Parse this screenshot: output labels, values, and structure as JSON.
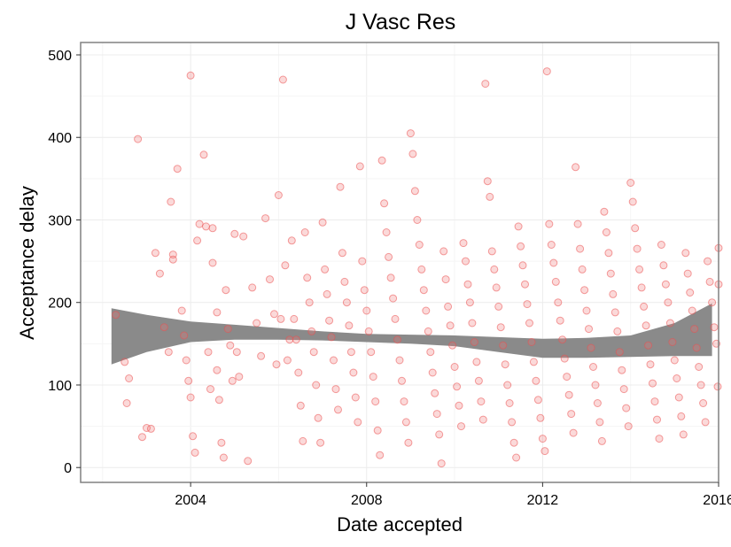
{
  "chart_data": {
    "type": "scatter",
    "title": "J Vasc Res",
    "xlabel": "Date accepted",
    "ylabel": "Acceptance delay",
    "xlim": [
      2001.5,
      2016.0
    ],
    "ylim": [
      -18,
      515
    ],
    "x_ticks": [
      2004,
      2008,
      2012,
      2016
    ],
    "x_tick_labels": [
      "2004",
      "2008",
      "2012",
      "2016"
    ],
    "y_ticks": [
      0,
      100,
      200,
      300,
      400,
      500
    ],
    "y_tick_labels": [
      "0",
      "100",
      "200",
      "300",
      "400",
      "500"
    ],
    "grid": true,
    "point_color": "#f08080",
    "band_color": "#8a8a8a",
    "smooth_band": {
      "x": [
        2002.2,
        2003.0,
        2004.0,
        2005.0,
        2006.0,
        2007.0,
        2008.0,
        2009.0,
        2010.0,
        2011.0,
        2012.0,
        2013.0,
        2014.0,
        2015.0,
        2015.85
      ],
      "upper": [
        193,
        185,
        177,
        173,
        169,
        165,
        162,
        161,
        160,
        158,
        156,
        157,
        160,
        175,
        199
      ],
      "lower": [
        125,
        140,
        152,
        155,
        155,
        154,
        152,
        150,
        147,
        140,
        133,
        133,
        134,
        135,
        135
      ]
    },
    "points": [
      [
        2002.3,
        185
      ],
      [
        2002.5,
        128
      ],
      [
        2002.6,
        108
      ],
      [
        2002.55,
        78
      ],
      [
        2002.8,
        398
      ],
      [
        2002.9,
        37
      ],
      [
        2003.0,
        48
      ],
      [
        2003.1,
        47
      ],
      [
        2003.2,
        260
      ],
      [
        2003.3,
        235
      ],
      [
        2003.4,
        170
      ],
      [
        2003.5,
        140
      ],
      [
        2003.55,
        322
      ],
      [
        2003.6,
        258
      ],
      [
        2003.6,
        252
      ],
      [
        2003.7,
        362
      ],
      [
        2003.8,
        190
      ],
      [
        2003.85,
        160
      ],
      [
        2003.9,
        130
      ],
      [
        2004.0,
        475
      ],
      [
        2003.95,
        105
      ],
      [
        2004.0,
        85
      ],
      [
        2004.05,
        38
      ],
      [
        2004.1,
        18
      ],
      [
        2004.15,
        275
      ],
      [
        2004.2,
        295
      ],
      [
        2004.3,
        379
      ],
      [
        2004.35,
        292
      ],
      [
        2004.4,
        140
      ],
      [
        2004.45,
        95
      ],
      [
        2004.5,
        248
      ],
      [
        2004.5,
        290
      ],
      [
        2004.6,
        188
      ],
      [
        2004.6,
        118
      ],
      [
        2004.65,
        82
      ],
      [
        2004.7,
        30
      ],
      [
        2004.75,
        12
      ],
      [
        2004.8,
        215
      ],
      [
        2004.85,
        168
      ],
      [
        2004.9,
        148
      ],
      [
        2004.95,
        105
      ],
      [
        2005.0,
        283
      ],
      [
        2005.05,
        140
      ],
      [
        2005.1,
        110
      ],
      [
        2005.2,
        280
      ],
      [
        2005.3,
        8
      ],
      [
        2005.4,
        218
      ],
      [
        2005.5,
        175
      ],
      [
        2005.6,
        135
      ],
      [
        2005.7,
        302
      ],
      [
        2005.8,
        228
      ],
      [
        2005.9,
        186
      ],
      [
        2005.95,
        125
      ],
      [
        2006.0,
        330
      ],
      [
        2006.05,
        180
      ],
      [
        2006.1,
        470
      ],
      [
        2006.15,
        245
      ],
      [
        2006.2,
        130
      ],
      [
        2006.25,
        155
      ],
      [
        2006.3,
        275
      ],
      [
        2006.35,
        180
      ],
      [
        2006.4,
        155
      ],
      [
        2006.45,
        115
      ],
      [
        2006.5,
        75
      ],
      [
        2006.55,
        32
      ],
      [
        2006.6,
        285
      ],
      [
        2006.65,
        230
      ],
      [
        2006.7,
        200
      ],
      [
        2006.75,
        165
      ],
      [
        2006.8,
        140
      ],
      [
        2006.85,
        100
      ],
      [
        2006.9,
        60
      ],
      [
        2006.95,
        30
      ],
      [
        2007.0,
        297
      ],
      [
        2007.05,
        240
      ],
      [
        2007.1,
        210
      ],
      [
        2007.15,
        178
      ],
      [
        2007.2,
        158
      ],
      [
        2007.25,
        130
      ],
      [
        2007.3,
        95
      ],
      [
        2007.35,
        70
      ],
      [
        2007.4,
        340
      ],
      [
        2007.45,
        260
      ],
      [
        2007.5,
        225
      ],
      [
        2007.55,
        200
      ],
      [
        2007.6,
        172
      ],
      [
        2007.65,
        140
      ],
      [
        2007.7,
        115
      ],
      [
        2007.75,
        85
      ],
      [
        2007.8,
        55
      ],
      [
        2007.85,
        365
      ],
      [
        2007.9,
        250
      ],
      [
        2007.95,
        215
      ],
      [
        2008.0,
        190
      ],
      [
        2008.05,
        165
      ],
      [
        2008.1,
        140
      ],
      [
        2008.15,
        110
      ],
      [
        2008.2,
        80
      ],
      [
        2008.25,
        45
      ],
      [
        2008.3,
        15
      ],
      [
        2008.35,
        372
      ],
      [
        2008.4,
        320
      ],
      [
        2008.45,
        285
      ],
      [
        2008.5,
        255
      ],
      [
        2008.55,
        230
      ],
      [
        2008.6,
        205
      ],
      [
        2008.65,
        180
      ],
      [
        2008.7,
        155
      ],
      [
        2008.75,
        130
      ],
      [
        2008.8,
        105
      ],
      [
        2008.85,
        80
      ],
      [
        2008.9,
        55
      ],
      [
        2008.95,
        30
      ],
      [
        2009.0,
        405
      ],
      [
        2009.05,
        380
      ],
      [
        2009.1,
        335
      ],
      [
        2009.15,
        300
      ],
      [
        2009.2,
        270
      ],
      [
        2009.25,
        240
      ],
      [
        2009.3,
        215
      ],
      [
        2009.35,
        190
      ],
      [
        2009.4,
        165
      ],
      [
        2009.45,
        140
      ],
      [
        2009.5,
        115
      ],
      [
        2009.55,
        90
      ],
      [
        2009.6,
        65
      ],
      [
        2009.65,
        40
      ],
      [
        2009.7,
        5
      ],
      [
        2009.75,
        262
      ],
      [
        2009.8,
        228
      ],
      [
        2009.85,
        195
      ],
      [
        2009.9,
        172
      ],
      [
        2009.95,
        148
      ],
      [
        2010.0,
        122
      ],
      [
        2010.05,
        98
      ],
      [
        2010.1,
        75
      ],
      [
        2010.15,
        50
      ],
      [
        2010.2,
        272
      ],
      [
        2010.25,
        250
      ],
      [
        2010.3,
        222
      ],
      [
        2010.35,
        200
      ],
      [
        2010.4,
        175
      ],
      [
        2010.45,
        152
      ],
      [
        2010.5,
        128
      ],
      [
        2010.55,
        105
      ],
      [
        2010.6,
        80
      ],
      [
        2010.65,
        58
      ],
      [
        2010.7,
        465
      ],
      [
        2010.75,
        347
      ],
      [
        2010.8,
        328
      ],
      [
        2010.85,
        262
      ],
      [
        2010.9,
        240
      ],
      [
        2010.95,
        218
      ],
      [
        2011.0,
        195
      ],
      [
        2011.05,
        170
      ],
      [
        2011.1,
        148
      ],
      [
        2011.15,
        125
      ],
      [
        2011.2,
        100
      ],
      [
        2011.25,
        78
      ],
      [
        2011.3,
        55
      ],
      [
        2011.35,
        30
      ],
      [
        2011.4,
        12
      ],
      [
        2011.45,
        292
      ],
      [
        2011.5,
        268
      ],
      [
        2011.55,
        245
      ],
      [
        2011.6,
        222
      ],
      [
        2011.65,
        198
      ],
      [
        2011.7,
        175
      ],
      [
        2011.75,
        152
      ],
      [
        2011.8,
        128
      ],
      [
        2011.85,
        105
      ],
      [
        2011.9,
        82
      ],
      [
        2011.95,
        60
      ],
      [
        2012.0,
        35
      ],
      [
        2012.05,
        20
      ],
      [
        2012.1,
        480
      ],
      [
        2012.15,
        295
      ],
      [
        2012.2,
        270
      ],
      [
        2012.25,
        248
      ],
      [
        2012.3,
        225
      ],
      [
        2012.35,
        200
      ],
      [
        2012.4,
        178
      ],
      [
        2012.45,
        155
      ],
      [
        2012.5,
        132
      ],
      [
        2012.55,
        110
      ],
      [
        2012.6,
        88
      ],
      [
        2012.65,
        65
      ],
      [
        2012.7,
        42
      ],
      [
        2012.75,
        364
      ],
      [
        2012.8,
        295
      ],
      [
        2012.85,
        265
      ],
      [
        2012.9,
        240
      ],
      [
        2012.95,
        215
      ],
      [
        2013.0,
        190
      ],
      [
        2013.05,
        168
      ],
      [
        2013.1,
        145
      ],
      [
        2013.15,
        122
      ],
      [
        2013.2,
        100
      ],
      [
        2013.25,
        78
      ],
      [
        2013.3,
        55
      ],
      [
        2013.35,
        32
      ],
      [
        2013.4,
        310
      ],
      [
        2013.45,
        285
      ],
      [
        2013.5,
        260
      ],
      [
        2013.55,
        235
      ],
      [
        2013.6,
        210
      ],
      [
        2013.65,
        188
      ],
      [
        2013.7,
        165
      ],
      [
        2013.75,
        140
      ],
      [
        2013.8,
        118
      ],
      [
        2013.85,
        95
      ],
      [
        2013.9,
        72
      ],
      [
        2013.95,
        50
      ],
      [
        2014.0,
        345
      ],
      [
        2014.05,
        322
      ],
      [
        2014.1,
        290
      ],
      [
        2014.15,
        265
      ],
      [
        2014.2,
        240
      ],
      [
        2014.25,
        218
      ],
      [
        2014.3,
        195
      ],
      [
        2014.35,
        172
      ],
      [
        2014.4,
        148
      ],
      [
        2014.45,
        125
      ],
      [
        2014.5,
        102
      ],
      [
        2014.55,
        80
      ],
      [
        2014.6,
        58
      ],
      [
        2014.65,
        35
      ],
      [
        2014.7,
        270
      ],
      [
        2014.75,
        245
      ],
      [
        2014.8,
        222
      ],
      [
        2014.85,
        200
      ],
      [
        2014.9,
        175
      ],
      [
        2014.95,
        152
      ],
      [
        2015.0,
        130
      ],
      [
        2015.05,
        108
      ],
      [
        2015.1,
        85
      ],
      [
        2015.15,
        62
      ],
      [
        2015.2,
        40
      ],
      [
        2015.25,
        260
      ],
      [
        2015.3,
        235
      ],
      [
        2015.35,
        212
      ],
      [
        2015.4,
        190
      ],
      [
        2015.45,
        168
      ],
      [
        2015.5,
        145
      ],
      [
        2015.55,
        122
      ],
      [
        2015.6,
        100
      ],
      [
        2015.65,
        78
      ],
      [
        2015.7,
        55
      ],
      [
        2015.75,
        250
      ],
      [
        2015.8,
        225
      ],
      [
        2015.85,
        200
      ],
      [
        2015.9,
        170
      ],
      [
        2015.95,
        150
      ],
      [
        2015.98,
        98
      ],
      [
        2016.0,
        266
      ],
      [
        2016.0,
        222
      ]
    ]
  }
}
